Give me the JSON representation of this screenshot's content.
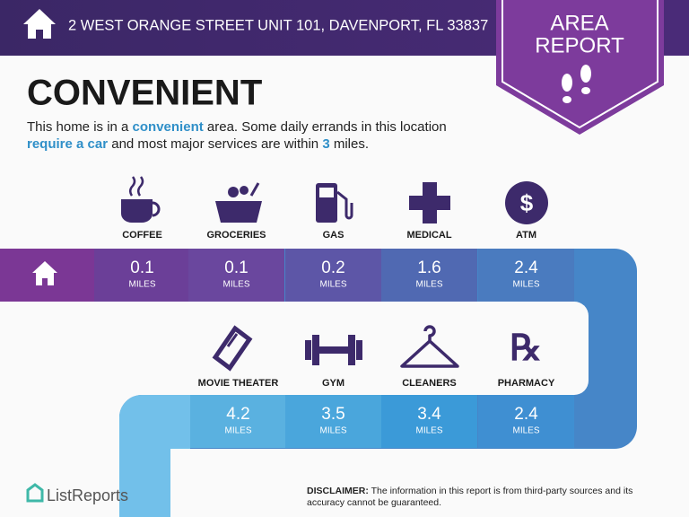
{
  "header": {
    "address": "2 WEST ORANGE STREET UNIT 101, DAVENPORT, FL 33837"
  },
  "badge": {
    "line1": "AREA",
    "line2": "REPORT"
  },
  "heading": "CONVENIENT",
  "description": [
    {
      "text": "This home is in a ",
      "emphasis": false
    },
    {
      "text": "convenient",
      "emphasis": true
    },
    {
      "text": " area. Some daily errands in this location ",
      "emphasis": false
    },
    {
      "text": "require a car",
      "emphasis": true
    },
    {
      "text": " and most major services are within ",
      "emphasis": false
    },
    {
      "text": "3",
      "emphasis": true
    },
    {
      "text": " miles.",
      "emphasis": false
    }
  ],
  "amenities": [
    {
      "label": "COFFEE",
      "distance": 0.1,
      "unit": "MILES"
    },
    {
      "label": "GROCERIES",
      "distance": 0.1,
      "unit": "MILES"
    },
    {
      "label": "GAS",
      "distance": 0.2,
      "unit": "MILES"
    },
    {
      "label": "MEDICAL",
      "distance": 1.6,
      "unit": "MILES"
    },
    {
      "label": "ATM",
      "distance": 2.4,
      "unit": "MILES"
    },
    {
      "label": "MOVIE THEATER",
      "distance": 4.2,
      "unit": "MILES"
    },
    {
      "label": "GYM",
      "distance": 3.5,
      "unit": "MILES"
    },
    {
      "label": "CLEANERS",
      "distance": 3.4,
      "unit": "MILES"
    },
    {
      "label": "PHARMACY",
      "distance": 2.4,
      "unit": "MILES"
    }
  ],
  "disclaimer": {
    "label": "DISCLAIMER:",
    "text": "The information in this report is from third-party sources and its accuracy cannot be guaranteed."
  },
  "brand": "ListReports"
}
